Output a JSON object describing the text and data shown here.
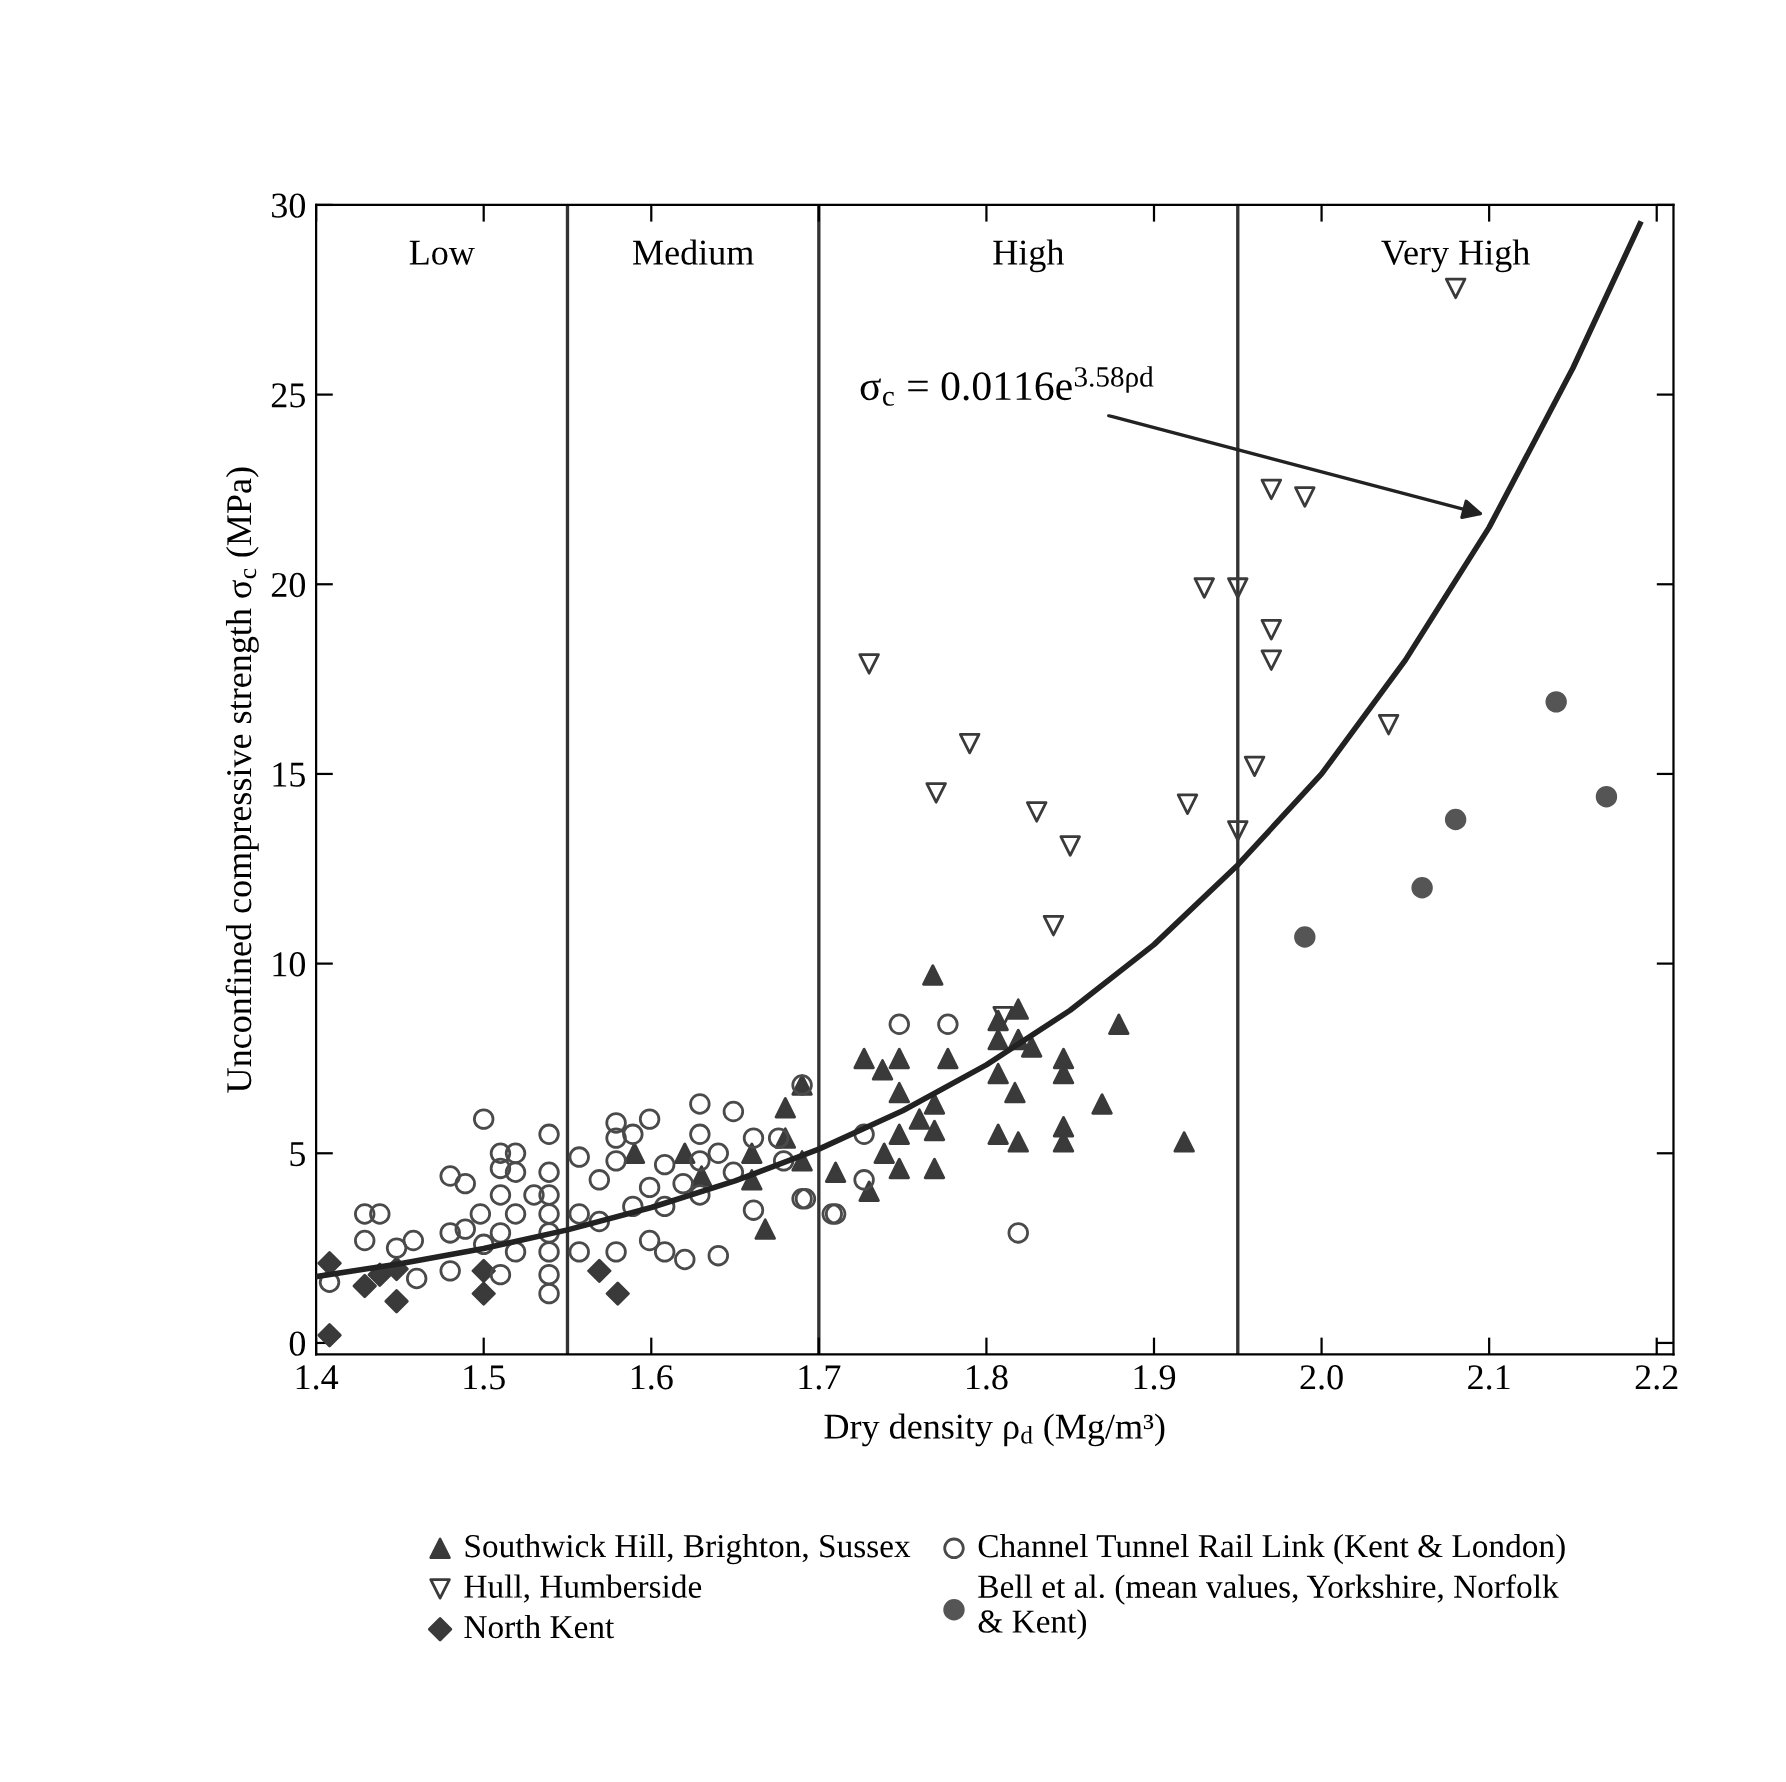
{
  "chart_data": {
    "type": "scatter",
    "xlabel": "Dry density ρ$_{d}$ (Mg/m³)",
    "ylabel": "Unconfined compressive strength σ$_{c}$ (MPa)",
    "xlim": [
      1.4,
      2.21
    ],
    "ylim": [
      -0.3,
      30
    ],
    "xticks": [
      1.4,
      1.5,
      1.6,
      1.7,
      1.8,
      1.9,
      {
        "value": 2,
        "label": "2.0"
      },
      2.1,
      2.2
    ],
    "yticks": [
      0,
      5,
      10,
      15,
      20,
      25,
      30
    ],
    "grid": false,
    "legend": "bottom",
    "ref_lines": [
      {
        "axis": "x",
        "value": 1.55,
        "color": "#333333"
      },
      {
        "axis": "x",
        "value": 1.7,
        "color": "#333333"
      },
      {
        "axis": "x",
        "value": 1.95,
        "color": "#333333"
      }
    ],
    "annotations": [
      "Low",
      "Medium",
      "High",
      "Very High",
      {
        "text": "σ$_{c}$ = 0.0116e$^{3.58ρd}$",
        "x": 2.1,
        "y": 21.8
      }
    ],
    "series": [
      {
        "name": "Southwick Hill, Brighton, Sussex",
        "marker": "triangle",
        "color": "#3a3a3a",
        "x": [
          1.768,
          1.727,
          1.738,
          1.748,
          1.777,
          1.807,
          1.819,
          1.807,
          1.819,
          1.827,
          1.879,
          1.748,
          1.769,
          1.807,
          1.817,
          1.846,
          1.846,
          1.869,
          1.918,
          1.807,
          1.819,
          1.846,
          1.846,
          1.769,
          1.769,
          1.748,
          1.748,
          1.739,
          1.73,
          1.71,
          1.76,
          1.668,
          1.68,
          1.69,
          1.69,
          1.62,
          1.59,
          1.66,
          1.63,
          1.66,
          1.68
        ],
        "values": [
          9.7,
          7.5,
          7.2,
          7.5,
          7.5,
          8.5,
          8.8,
          8.0,
          8.0,
          7.8,
          8.4,
          6.6,
          6.3,
          7.1,
          6.6,
          7.5,
          7.1,
          6.3,
          5.3,
          5.5,
          5.3,
          5.7,
          5.3,
          5.6,
          4.6,
          5.5,
          4.6,
          5.0,
          4.0,
          4.5,
          5.9,
          3.0,
          6.2,
          6.8,
          4.8,
          5.0,
          5.0,
          5.0,
          4.4,
          4.3,
          5.4
        ]
      },
      {
        "name": "Hull, Humberside",
        "marker": "triangle-down-open",
        "color": "#3a3a3a",
        "x": [
          1.73,
          1.77,
          1.79,
          1.83,
          1.84,
          1.85,
          1.92,
          1.93,
          1.95,
          1.95,
          1.96,
          1.97,
          1.97,
          1.97,
          1.99,
          2.04,
          2.08,
          1.81
        ],
        "values": [
          17.9,
          14.5,
          15.8,
          14.0,
          11.0,
          13.1,
          14.2,
          19.9,
          19.9,
          13.5,
          15.2,
          18.0,
          18.8,
          22.5,
          22.3,
          16.3,
          27.8,
          8.6
        ]
      },
      {
        "name": "North Kent",
        "marker": "diamond",
        "color": "#3a3a3a",
        "x": [
          1.408,
          1.408,
          1.429,
          1.438,
          1.448,
          1.448,
          1.5,
          1.5,
          1.569,
          1.58
        ],
        "values": [
          2.1,
          0.2,
          1.5,
          1.8,
          1.95,
          1.1,
          1.9,
          1.3,
          1.9,
          1.3
        ]
      },
      {
        "name": "Channel Tunnel Rail Link (Kent & London)",
        "marker": "circle-open",
        "color": "#4a4a4a",
        "x": [
          1.5,
          1.539,
          1.48,
          1.489,
          1.429,
          1.438,
          1.429,
          1.448,
          1.458,
          1.408,
          1.46,
          1.48,
          1.489,
          1.498,
          1.51,
          1.519,
          1.51,
          1.519,
          1.51,
          1.519,
          1.51,
          1.519,
          1.51,
          1.53,
          1.539,
          1.539,
          1.539,
          1.539,
          1.539,
          1.539,
          1.539,
          1.557,
          1.557,
          1.569,
          1.579,
          1.579,
          1.579,
          1.589,
          1.599,
          1.579,
          1.589,
          1.599,
          1.599,
          1.608,
          1.608,
          1.62,
          1.629,
          1.629,
          1.629,
          1.64,
          1.64,
          1.649,
          1.649,
          1.661,
          1.661,
          1.676,
          1.69,
          1.69,
          1.708,
          1.619,
          1.557,
          1.569,
          1.608,
          1.629,
          1.5,
          1.48,
          1.679,
          1.748,
          1.777,
          1.819,
          1.727,
          1.727,
          1.71,
          1.692
        ],
        "values": [
          5.9,
          5.5,
          4.4,
          4.2,
          3.4,
          3.4,
          2.7,
          2.5,
          2.7,
          1.6,
          1.7,
          1.9,
          3.0,
          3.4,
          5.0,
          5.0,
          4.6,
          4.5,
          3.9,
          3.4,
          2.9,
          2.4,
          1.8,
          3.9,
          4.5,
          3.9,
          3.4,
          2.9,
          2.4,
          1.8,
          1.3,
          4.9,
          2.4,
          4.3,
          5.8,
          5.4,
          4.8,
          5.5,
          5.9,
          2.4,
          3.6,
          4.1,
          2.7,
          4.7,
          2.4,
          2.2,
          6.3,
          5.5,
          4.8,
          5.0,
          2.3,
          6.1,
          4.5,
          3.5,
          5.4,
          5.4,
          3.8,
          6.8,
          3.4,
          4.2,
          3.4,
          3.2,
          3.6,
          3.9,
          2.6,
          2.9,
          4.8,
          8.4,
          8.4,
          2.9,
          5.5,
          4.3,
          3.4,
          3.8
        ]
      },
      {
        "name": "Bell et al. (mean values, Yorkshire, Norfolk\n& Kent)",
        "marker": "circle",
        "color": "#555555",
        "x": [
          1.99,
          2.06,
          2.08,
          2.14,
          2.17
        ],
        "values": [
          10.7,
          12.0,
          13.8,
          16.9,
          14.4
        ]
      },
      {
        "type": "line",
        "color": "#222222",
        "line_style": "solid",
        "marker": "none",
        "x": [
          1.4,
          1.45,
          1.5,
          1.55,
          1.6,
          1.65,
          1.7,
          1.75,
          1.8,
          1.85,
          1.9,
          1.95,
          2.0,
          2.05,
          2.1,
          2.15,
          2.19
        ],
        "values": [
          1.75,
          2.09,
          2.49,
          2.98,
          3.57,
          4.27,
          5.11,
          6.12,
          7.33,
          8.77,
          10.5,
          12.6,
          15.0,
          18.0,
          21.5,
          25.7,
          29.5
        ]
      }
    ]
  }
}
